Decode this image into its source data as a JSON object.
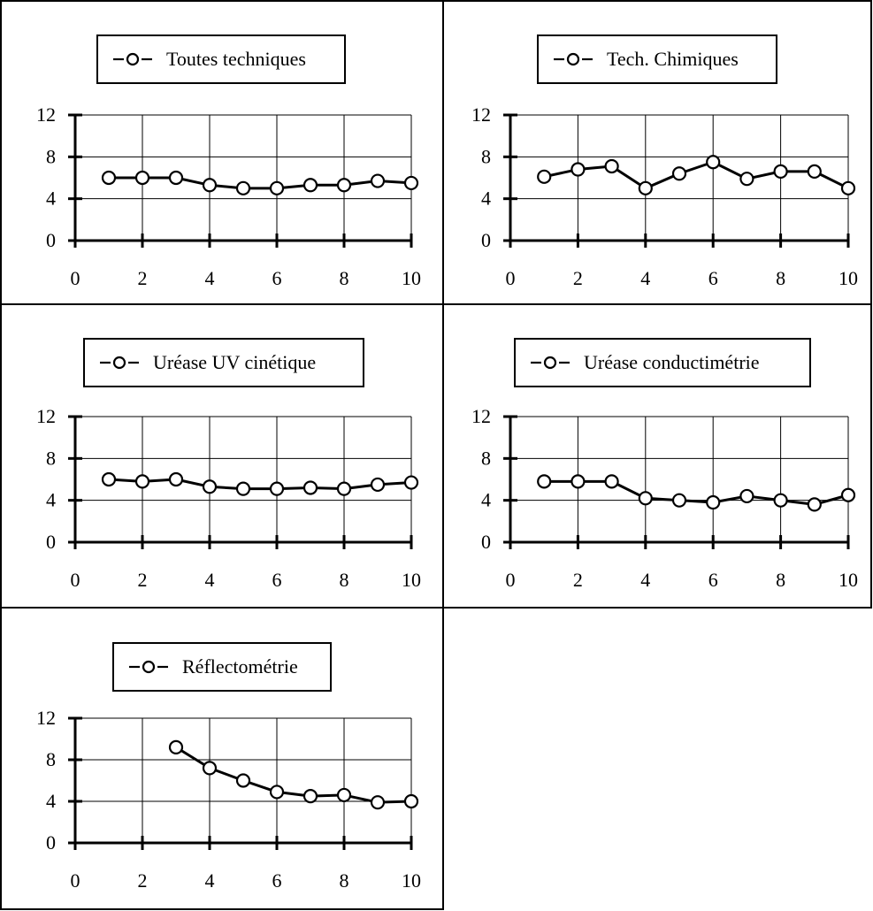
{
  "chart_data": [
    {
      "type": "line",
      "legend_label": "Toutes techniques",
      "x": [
        1,
        2,
        3,
        4,
        5,
        6,
        7,
        8,
        9,
        10
      ],
      "values": [
        6.0,
        6.0,
        6.0,
        5.3,
        5.0,
        5.0,
        5.3,
        5.3,
        5.7,
        5.5
      ],
      "xlim": [
        0,
        10
      ],
      "ylim": [
        0,
        12
      ],
      "x_ticks": [
        "0",
        "2",
        "4",
        "6",
        "8",
        "10"
      ],
      "y_ticks": [
        "0",
        "4",
        "8",
        "12"
      ],
      "grid": true,
      "legend_position": "top-center"
    },
    {
      "type": "line",
      "legend_label": "Tech. Chimiques",
      "x": [
        1,
        2,
        3,
        4,
        5,
        6,
        7,
        8,
        9,
        10
      ],
      "values": [
        6.1,
        6.8,
        7.1,
        5.0,
        6.4,
        7.5,
        5.9,
        6.6,
        6.6,
        5.0
      ],
      "xlim": [
        0,
        10
      ],
      "ylim": [
        0,
        12
      ],
      "x_ticks": [
        "0",
        "2",
        "4",
        "6",
        "8",
        "10"
      ],
      "y_ticks": [
        "0",
        "4",
        "8",
        "12"
      ],
      "grid": true,
      "legend_position": "top-center"
    },
    {
      "type": "line",
      "legend_label": "Uréase UV cinétique",
      "x": [
        1,
        2,
        3,
        4,
        5,
        6,
        7,
        8,
        9,
        10
      ],
      "values": [
        6.0,
        5.8,
        6.0,
        5.3,
        5.1,
        5.1,
        5.2,
        5.1,
        5.5,
        5.7
      ],
      "xlim": [
        0,
        10
      ],
      "ylim": [
        0,
        12
      ],
      "x_ticks": [
        "0",
        "2",
        "4",
        "6",
        "8",
        "10"
      ],
      "y_ticks": [
        "0",
        "4",
        "8",
        "12"
      ],
      "grid": true,
      "legend_position": "top-center"
    },
    {
      "type": "line",
      "legend_label": "Uréase conductimétrie",
      "x": [
        1,
        2,
        3,
        4,
        5,
        6,
        7,
        8,
        9,
        10
      ],
      "values": [
        5.8,
        5.8,
        5.8,
        4.2,
        4.0,
        3.8,
        4.4,
        4.0,
        3.6,
        4.5
      ],
      "xlim": [
        0,
        10
      ],
      "ylim": [
        0,
        12
      ],
      "x_ticks": [
        "0",
        "2",
        "4",
        "6",
        "8",
        "10"
      ],
      "y_ticks": [
        "0",
        "4",
        "8",
        "12"
      ],
      "grid": true,
      "legend_position": "top-center"
    },
    {
      "type": "line",
      "legend_label": "Réflectométrie",
      "x": [
        3,
        4,
        5,
        6,
        7,
        8,
        9,
        10
      ],
      "values": [
        9.2,
        7.2,
        6.0,
        4.9,
        4.5,
        4.6,
        3.9,
        4.0
      ],
      "xlim": [
        0,
        10
      ],
      "ylim": [
        0,
        12
      ],
      "x_ticks": [
        "0",
        "2",
        "4",
        "6",
        "8",
        "10"
      ],
      "y_ticks": [
        "0",
        "4",
        "8",
        "12"
      ],
      "grid": true,
      "legend_position": "top-center"
    }
  ]
}
